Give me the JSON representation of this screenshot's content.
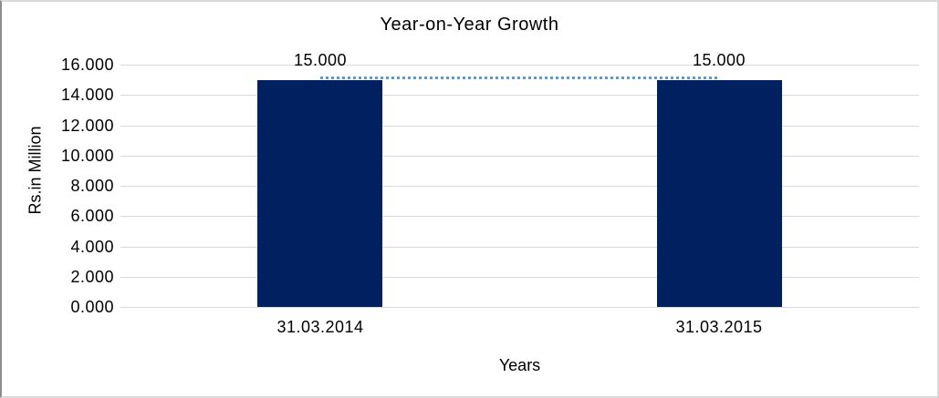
{
  "chart_data": {
    "type": "bar",
    "title": "Year-on-Year Growth",
    "categories": [
      "31.03.2014",
      "31.03.2015"
    ],
    "values": [
      15,
      15
    ],
    "data_labels": [
      "15.000",
      "15.000"
    ],
    "xlabel": "Years",
    "ylabel": "Rs.in Million",
    "ylim": [
      0,
      16
    ],
    "ytick_interval": 2,
    "ytick_labels": [
      "0.000",
      "2.000",
      "4.000",
      "6.000",
      "8.000",
      "10.000",
      "12.000",
      "14.000",
      "16.000"
    ],
    "grid": "horizontal",
    "legend": "none",
    "bar_color": "#002060",
    "gridline_color": "#d9d9d9",
    "trendline": {
      "style": "dotted",
      "color": "#5b9bd5",
      "connects": "bar-tops",
      "values": [
        15,
        15
      ]
    }
  }
}
